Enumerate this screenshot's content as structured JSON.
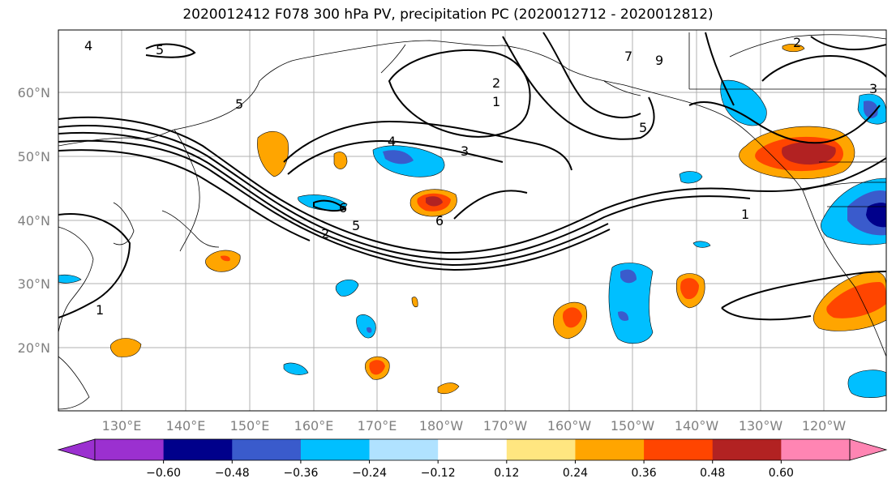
{
  "title": "2020012412 F078 300 hPa PV, precipitation PC (2020012712 - 2020012812)",
  "lat_labels": [
    "60°N",
    "50°N",
    "40°N",
    "30°N",
    "20°N"
  ],
  "lon_labels": [
    "130°E",
    "140°E",
    "150°E",
    "160°E",
    "170°E",
    "180°W",
    "170°W",
    "160°W",
    "150°W",
    "140°W",
    "130°W",
    "120°W"
  ],
  "contour_labels": [
    "4",
    "5",
    "5",
    "1",
    "2",
    "7",
    "9",
    "5",
    "3",
    "4",
    "6",
    "2",
    "5",
    "6",
    "1",
    "2",
    "3",
    "1"
  ],
  "colorbar": {
    "colors": [
      "#9b30d0",
      "#00008b",
      "#3a5bcc",
      "#00bfff",
      "#b0e2ff",
      "#ffffff",
      "#ffe680",
      "#ffa500",
      "#ff4500",
      "#b22222",
      "#ff85b3"
    ],
    "tick_labels": [
      "−0.60",
      "−0.48",
      "−0.36",
      "−0.24",
      "−0.12",
      "0.12",
      "0.24",
      "0.36",
      "0.48",
      "0.60"
    ]
  }
}
